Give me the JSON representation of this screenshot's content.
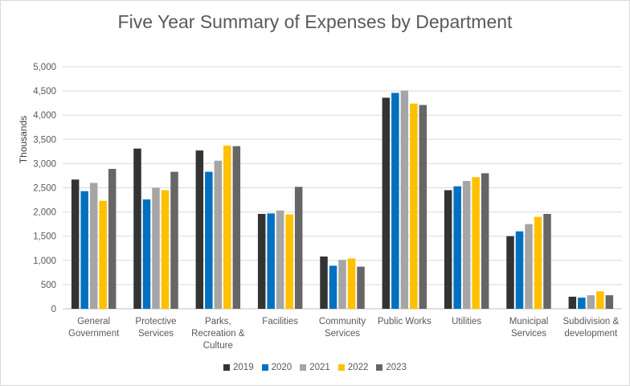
{
  "chart_data": {
    "type": "bar",
    "title": "Five Year Summary of Expenses by Department",
    "ylabel": "Thousands",
    "xlabel": "",
    "ylim": [
      0,
      5000
    ],
    "yticks": [
      "0",
      "500",
      "1,000",
      "1,500",
      "2,000",
      "2,500",
      "3,000",
      "3,500",
      "4,000",
      "4,500",
      "5,000"
    ],
    "grid": true,
    "legend_position": "bottom",
    "categories": [
      [
        "General",
        "Government"
      ],
      [
        "Protective",
        "Services"
      ],
      [
        "Parks,",
        "Recreation &",
        "Culture"
      ],
      [
        "Facilities"
      ],
      [
        "Community",
        "Services"
      ],
      [
        "Public Works"
      ],
      [
        "Utilities"
      ],
      [
        "Municipal",
        "Services"
      ],
      [
        "Subdivision &",
        "development"
      ]
    ],
    "series": [
      {
        "name": "2019",
        "color": "#333333",
        "values": [
          2670,
          3310,
          3270,
          1960,
          1080,
          4360,
          2450,
          1500,
          250
        ]
      },
      {
        "name": "2020",
        "color": "#0070c0",
        "values": [
          2430,
          2260,
          2830,
          1970,
          890,
          4460,
          2530,
          1600,
          230
        ]
      },
      {
        "name": "2021",
        "color": "#a5a5a5",
        "values": [
          2600,
          2500,
          3060,
          2030,
          1010,
          4510,
          2640,
          1750,
          280
        ]
      },
      {
        "name": "2022",
        "color": "#ffc000",
        "values": [
          2230,
          2450,
          3370,
          1950,
          1040,
          4240,
          2720,
          1900,
          360
        ]
      },
      {
        "name": "2023",
        "color": "#666666",
        "values": [
          2890,
          2830,
          3360,
          2520,
          870,
          4210,
          2800,
          1960,
          280
        ]
      }
    ]
  }
}
